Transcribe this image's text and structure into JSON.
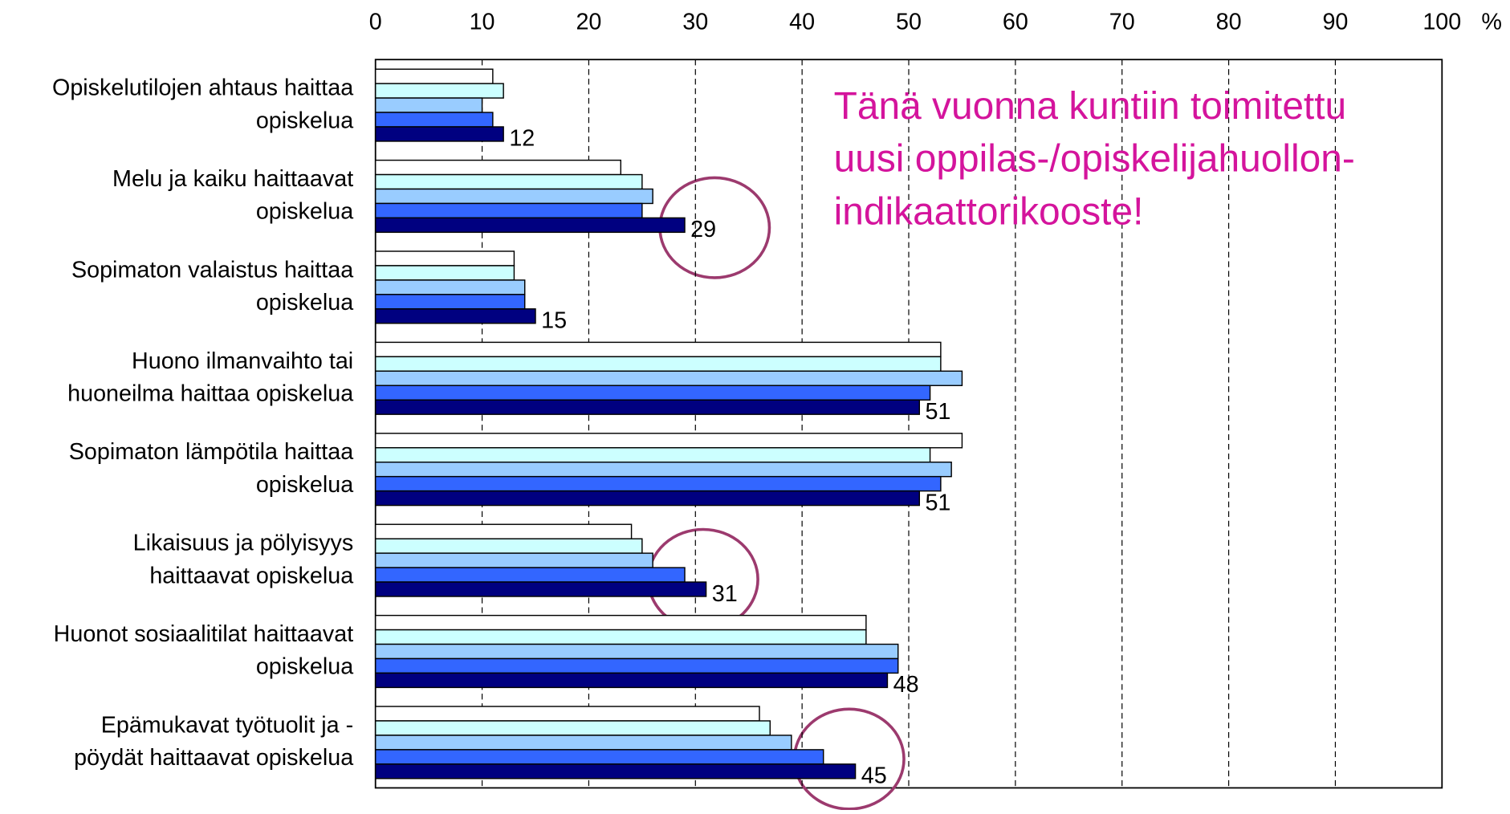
{
  "chart_data": {
    "type": "hbar",
    "categories": [
      "Opiskelutilojen ahtaus haittaa\nopiskelua",
      "Melu ja kaiku haittaavat\nopiskelua",
      "Sopimaton valaistus haittaa\nopiskelua",
      "Huono ilmanvaihto tai\nhuoneilma haittaa opiskelua",
      "Sopimaton lämpötila haittaa\nopiskelua",
      "Likaisuus ja pölyisyys\nhaittaavat opiskelua",
      "Huonot sosiaalitilat haittaavat\nopiskelua",
      "Epämukavat työtuolit ja -\npöydät haittaavat opiskelua"
    ],
    "series": [
      {
        "color": "#ffffff",
        "values": [
          11,
          23,
          13,
          53,
          55,
          24,
          46,
          36
        ]
      },
      {
        "color": "#ccffff",
        "values": [
          12,
          25,
          13,
          53,
          52,
          25,
          46,
          37
        ]
      },
      {
        "color": "#99ccff",
        "values": [
          10,
          26,
          14,
          55,
          54,
          26,
          49,
          39
        ]
      },
      {
        "color": "#3366ff",
        "values": [
          11,
          25,
          14,
          52,
          53,
          29,
          49,
          42
        ]
      },
      {
        "color": "#000080",
        "values": [
          12,
          29,
          15,
          51,
          51,
          31,
          48,
          45
        ]
      }
    ],
    "labelled_series": 4,
    "xlim": [
      0,
      100
    ],
    "xticks": [
      0,
      10,
      20,
      30,
      40,
      50,
      60,
      70,
      80,
      90,
      100
    ],
    "x_label": "%",
    "grid": true,
    "annotation": [
      "Tänä vuonna kuntiin toimitettu",
      "uusi oppilas-/opiskelijahuollon-",
      "indikaattorikooste!"
    ],
    "annotation_color": "#d4149c"
  }
}
